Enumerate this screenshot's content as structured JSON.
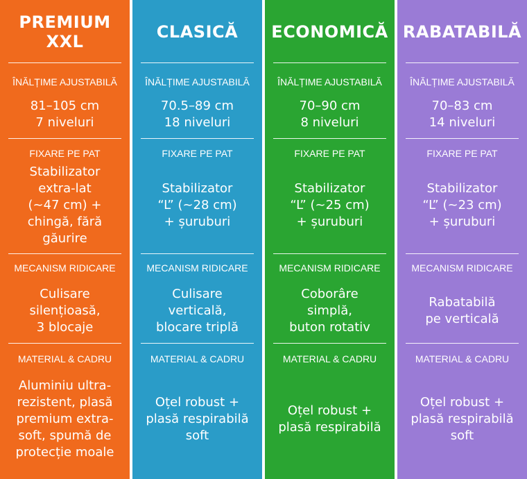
{
  "labels": {
    "height": "ÎNĂLȚIME AJUSTABILĂ",
    "fixing": "FIXARE PE PAT",
    "mechanism": "MECANISM RIDICARE",
    "material": "MATERIAL & CADRU"
  },
  "columns": [
    {
      "title": "PREMIUM\nXXL",
      "color": "#f06a1d",
      "height": "81–105 cm\n7 niveluri",
      "fixing": "Stabilizator\nextra-lat\n(~47 cm) +\nchingă, fără\ngăurire",
      "mechanism": "Culisare\nsilențioasă,\n3 blocaje",
      "material": "Aluminiu ultra-\nrezistent, plasă\npremium extra-\nsoft, spumă de\nprotecție moale"
    },
    {
      "title": "CLASICĂ",
      "color": "#2a9cc8",
      "height": "70.5–89 cm\n18 niveluri",
      "fixing": "Stabilizator\n“L” (~28 cm)\n+ șuruburi",
      "mechanism": "Culisare\nverticală,\nblocare triplă",
      "material": "Oțel robust +\nplasă respirabilă\nsoft"
    },
    {
      "title": "ECONOMICĂ",
      "color": "#2aa532",
      "height": "70–90 cm\n8 niveluri",
      "fixing": "Stabilizator\n“L” (~25 cm)\n+ șuruburi",
      "mechanism": "Coborâre\nsimplă,\nbuton rotativ",
      "material": "Oțel robust +\nplasă respirabilă"
    },
    {
      "title": "RABATABILĂ",
      "color": "#9a7bd6",
      "height": "70–83 cm\n14 niveluri",
      "fixing": "Stabilizator\n“L”  (~23 cm)\n+ șuruburi",
      "mechanism": "Rabatabilă\npe verticală",
      "material": "Oțel robust +\nplasă respirabilă\nsoft"
    }
  ]
}
